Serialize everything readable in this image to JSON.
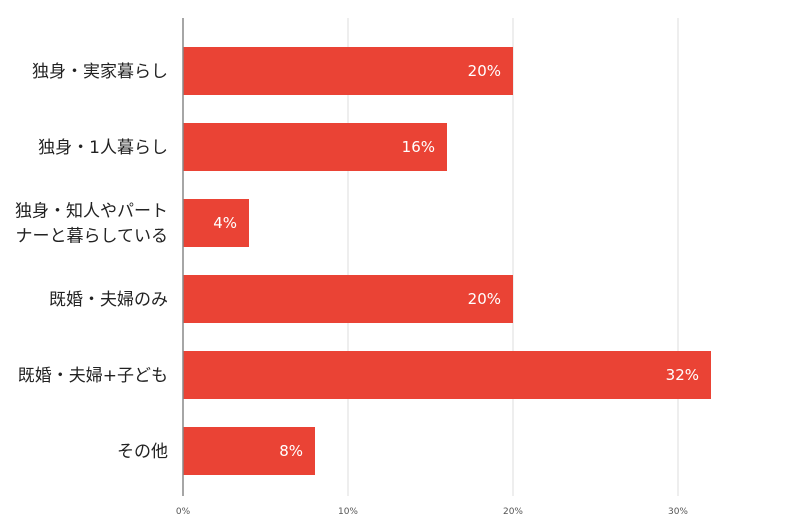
{
  "chart_data": {
    "type": "bar",
    "orientation": "horizontal",
    "categories": [
      [
        "独身・実家暮らし"
      ],
      [
        "独身・1人暮らし"
      ],
      [
        "独身・知人やパート",
        "ナーと暮らしている"
      ],
      [
        "既婚・夫婦のみ"
      ],
      [
        "既婚・夫婦+子ども"
      ],
      [
        "その他"
      ]
    ],
    "values": [
      20,
      16,
      4,
      20,
      32,
      8
    ],
    "data_labels": [
      "20%",
      "16%",
      "4%",
      "20%",
      "32%",
      "8%"
    ],
    "xlim": [
      0,
      36
    ],
    "xticks": [
      0,
      10,
      20,
      30
    ],
    "xtick_labels": [
      "0%",
      "10%",
      "20%",
      "30%"
    ],
    "grid": true,
    "bar_color": "#ea4335",
    "grid_color": "#dddddd",
    "axis_color": "#888888"
  }
}
